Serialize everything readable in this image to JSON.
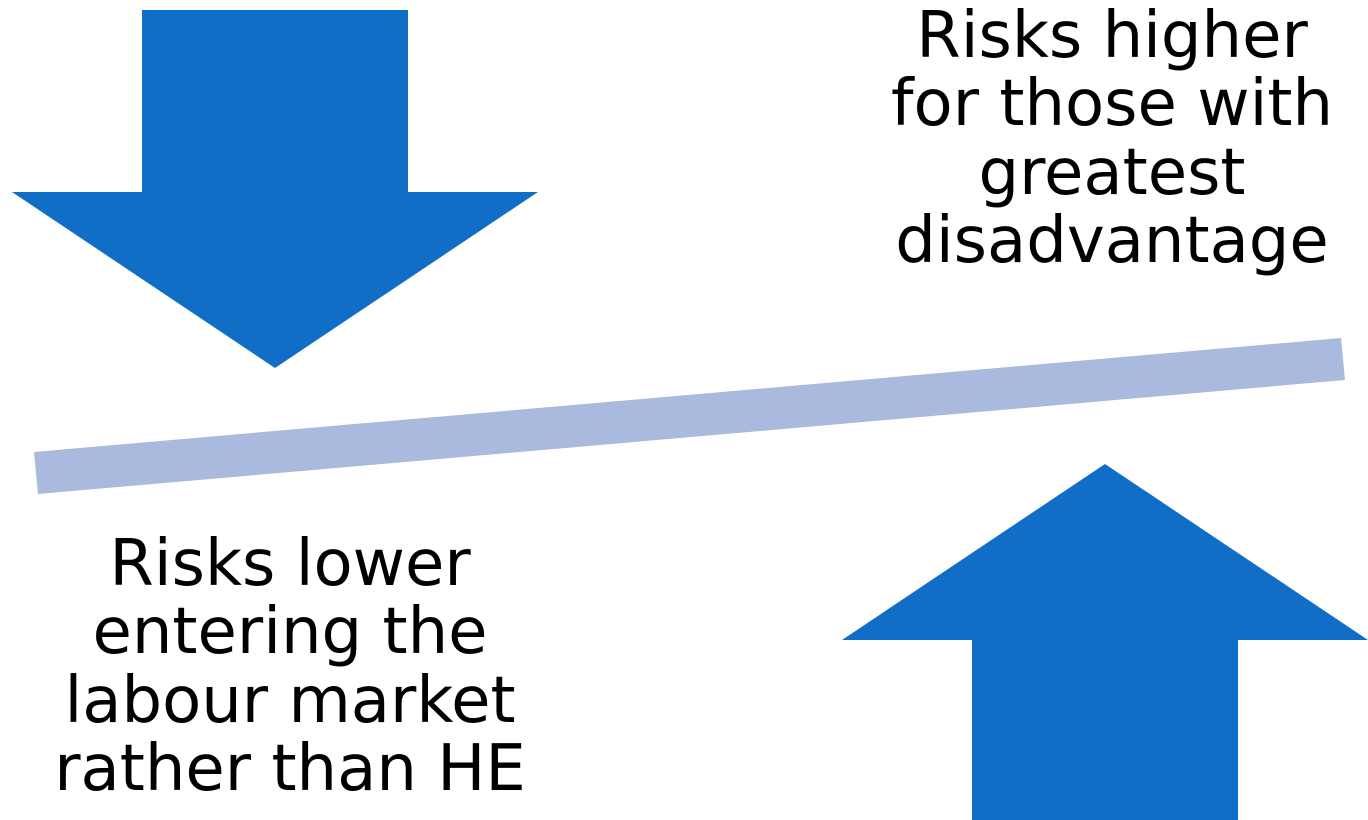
{
  "diagram": {
    "upper_right_text": {
      "lines": [
        "Risks higher",
        "for those with",
        "greatest",
        "disadvantage"
      ]
    },
    "lower_left_text": {
      "lines": [
        "Risks lower",
        "entering the",
        "labour market",
        "rather than HE"
      ]
    },
    "colors": {
      "arrow": "#106ec6",
      "balance_beam": "#aab9de",
      "text": "#000000",
      "background": "#ffffff"
    },
    "icons": {
      "left_arrow": "down-arrow-icon",
      "right_arrow": "up-arrow-icon"
    }
  }
}
